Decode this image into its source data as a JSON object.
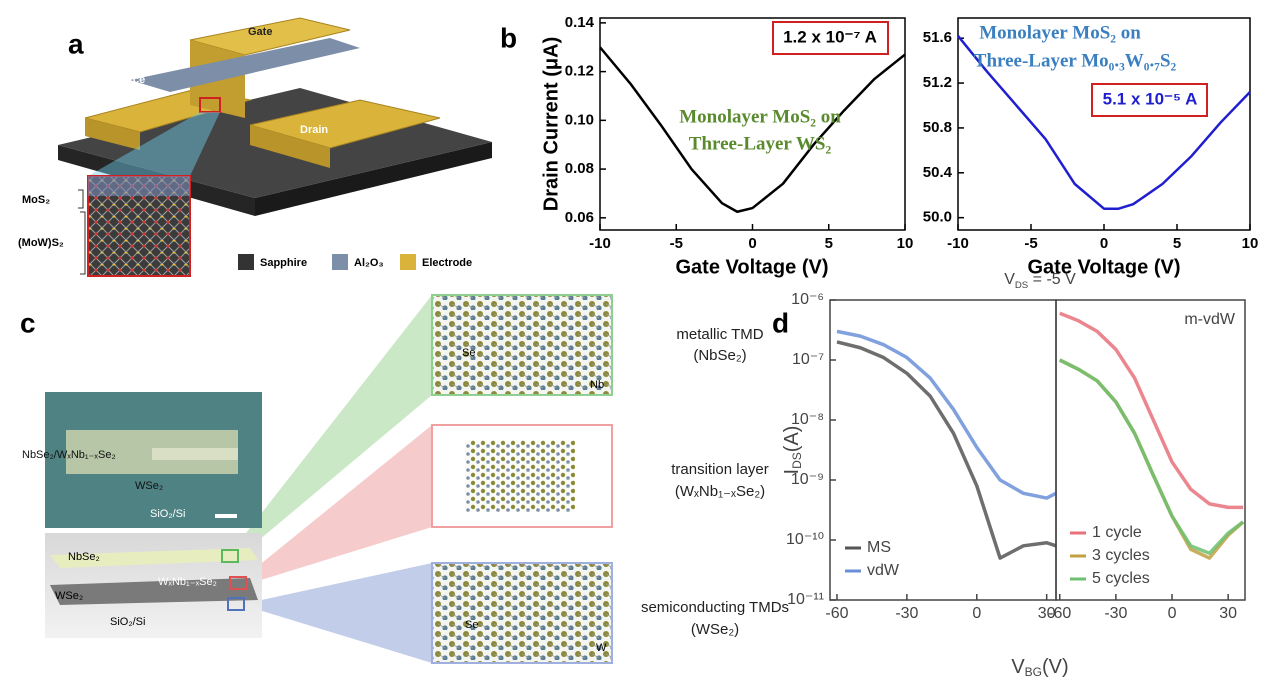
{
  "panels": {
    "a": {
      "label": "a",
      "gate": "Gate",
      "source": "Source",
      "drain": "Drain",
      "mos2": "MoS₂",
      "mows2": "(MoW)S₂",
      "legend": [
        "Sapphire",
        "Al₂O₃",
        "Electrode"
      ]
    },
    "b": {
      "label": "b"
    },
    "c": {
      "label": "c",
      "micro_labels": [
        "NbSe₂/WₓNb₁₋ₓSe₂",
        "WSe₂",
        "SiO₂/Si"
      ],
      "side_labels": [
        "NbSe₂",
        "WₓNb₁₋ₓSe₂",
        "WSe₂",
        "SiO₂/Si"
      ],
      "insets": [
        {
          "atoms": [
            "Se",
            "Nb"
          ],
          "title": "metallic TMD",
          "formula": "(NbSe₂)"
        },
        {
          "atoms": [],
          "title": "transition layer",
          "formula": "(WₓNb₁₋ₓSe₂)"
        },
        {
          "atoms": [
            "Se",
            "W"
          ],
          "title": "semiconducting TMDs",
          "formula": "(WSe₂)"
        }
      ]
    },
    "d": {
      "label": "d"
    }
  },
  "chart_data": [
    {
      "type": "line",
      "y_label": "Drain Current (μA)",
      "x_label": "Gate Voltage (V)",
      "annotations": [
        "1.2 x 10⁻⁷ A",
        "Monolayer MoS₂ on",
        "Three-Layer WS₂"
      ],
      "x": [
        -10,
        -8,
        -6,
        -4,
        -2,
        -1,
        0,
        2,
        4,
        6,
        8,
        10
      ],
      "series": [
        {
          "name": "Monolayer MoS₂ on Three-Layer WS₂",
          "color": "#000000",
          "values": [
            0.13,
            0.115,
            0.098,
            0.08,
            0.066,
            0.0625,
            0.064,
            0.074,
            0.09,
            0.104,
            0.117,
            0.127
          ]
        }
      ],
      "xlim": [
        -10,
        10
      ],
      "ylim": [
        0.055,
        0.142
      ],
      "xticks": [
        -10,
        -5,
        0,
        5,
        10
      ],
      "yticks": [
        0.06,
        0.08,
        {
          "value": 0.1,
          "label": "0.10"
        },
        0.12,
        0.14
      ]
    },
    {
      "type": "line",
      "x_label": "Gate Voltage (V)",
      "annotations": [
        "Monolayer MoS₂ on",
        "Three-Layer Mo₀.₃W₀.₇S₂",
        "5.1 x 10⁻⁵ A"
      ],
      "x": [
        -10,
        -8,
        -6,
        -4,
        -2,
        0,
        1,
        2,
        4,
        6,
        8,
        10
      ],
      "series": [
        {
          "name": "Monolayer MoS₂ on Three-Layer Mo₀.₃W₀.₇S₂",
          "color": "#1f1fd0",
          "values": [
            51.62,
            51.3,
            51.0,
            50.7,
            50.3,
            50.08,
            50.08,
            50.12,
            50.3,
            50.55,
            50.85,
            51.12
          ]
        }
      ],
      "xlim": [
        -10,
        10
      ],
      "ylim": [
        49.89,
        51.78
      ],
      "xticks": [
        -10,
        -5,
        0,
        5,
        10
      ],
      "yticks": [
        {
          "value": 50,
          "label": "50.0"
        },
        50.4,
        50.8,
        51.2,
        51.6
      ]
    },
    {
      "type": "line",
      "log_y": true,
      "title": {
        "text": "V",
        "sub": "DS",
        "tail": " = -5 V"
      },
      "y_label": {
        "text": "I",
        "sub": "DS",
        "tail": "(A)"
      },
      "x_label": {
        "text": "V",
        "sub": "BG",
        "tail": "(V)"
      },
      "legend": "lower left",
      "x": [
        -60,
        -50,
        -40,
        -30,
        -20,
        -10,
        0,
        10,
        20,
        30,
        34
      ],
      "series": [
        {
          "name": "MS",
          "color": "#555555",
          "values": [
            2e-07,
            1.6e-07,
            1.1e-07,
            6e-08,
            2.5e-08,
            6e-09,
            8e-10,
            5e-11,
            8e-11,
            9e-11,
            8e-11
          ]
        },
        {
          "name": "vdW",
          "color": "#6a8fd8",
          "values": [
            3e-07,
            2.5e-07,
            1.8e-07,
            1.1e-07,
            5e-08,
            1.5e-08,
            3.5e-09,
            1e-09,
            6e-10,
            5e-10,
            6e-10
          ]
        }
      ],
      "xlim": [
        -63,
        34
      ],
      "ylim": [
        1e-11,
        1e-06
      ],
      "xticks": [
        -60,
        -30,
        0,
        30
      ],
      "yticks": [
        {
          "value": 1e-11,
          "label": "10⁻¹¹"
        },
        {
          "value": 1e-10,
          "label": "10⁻¹⁰"
        },
        {
          "value": 1e-09,
          "label": "10⁻⁹"
        },
        {
          "value": 1e-08,
          "label": "10⁻⁸"
        },
        {
          "value": 1e-07,
          "label": "10⁻⁷"
        },
        {
          "value": 1e-06,
          "label": "10⁻⁶"
        }
      ]
    },
    {
      "type": "line",
      "log_y": true,
      "annotations": [
        "m-vdW"
      ],
      "legend": "lower left",
      "x": [
        -60,
        -50,
        -40,
        -30,
        -20,
        -10,
        0,
        10,
        20,
        30,
        38
      ],
      "series": [
        {
          "name": "1 cycle",
          "color": "#e8707a",
          "values": [
            6e-07,
            4.5e-07,
            3e-07,
            1.5e-07,
            5e-08,
            1e-08,
            2e-09,
            7e-10,
            4e-10,
            3.5e-10,
            3.5e-10
          ]
        },
        {
          "name": "3 cycles",
          "color": "#c0a040",
          "values": [
            1e-07,
            7e-08,
            4.5e-08,
            2e-08,
            6e-09,
            1.2e-09,
            2.5e-10,
            7e-11,
            5e-11,
            1.2e-10,
            2e-10
          ]
        },
        {
          "name": "5 cycles",
          "color": "#6cc070",
          "values": [
            1e-07,
            7e-08,
            4.5e-08,
            2e-08,
            6e-09,
            1.2e-09,
            2.5e-10,
            8e-11,
            6e-11,
            1.3e-10,
            2e-10
          ]
        }
      ],
      "xlim": [
        -62,
        39
      ],
      "ylim": [
        1e-11,
        1e-06
      ],
      "xticks": [
        -60,
        -30,
        0,
        30
      ]
    }
  ]
}
